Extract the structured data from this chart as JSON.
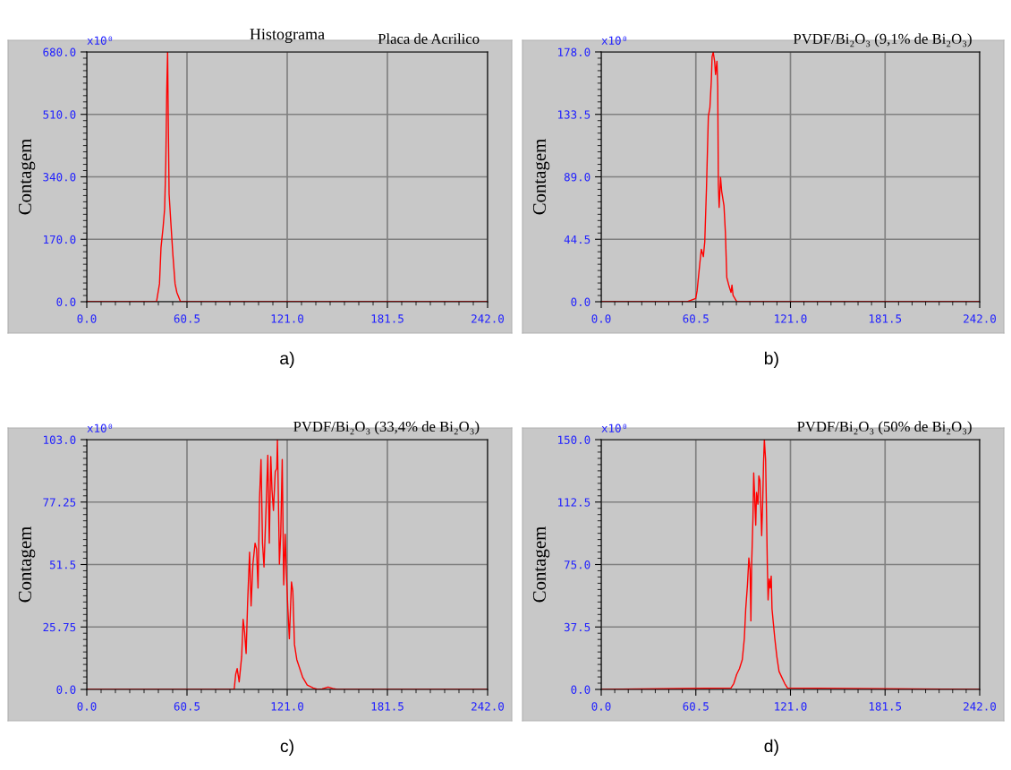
{
  "chart_data": [
    {
      "type": "line",
      "title": "Histograma",
      "subtitle": "Placa de Acrilico",
      "ylabel": "Contagem",
      "annotations": [
        "x10⁰",
        "a)"
      ],
      "grid": true,
      "marker": "none",
      "line_style": "solid",
      "xlim": [
        0,
        242
      ],
      "xticks": [
        {
          "value": 0,
          "label": "0.0"
        },
        {
          "value": 60.5,
          "label": "60.5"
        },
        {
          "value": 121,
          "label": "121.0"
        },
        {
          "value": 181.5,
          "label": "181.5"
        },
        {
          "value": 242,
          "label": "242.0"
        }
      ],
      "ylim": [
        0,
        680
      ],
      "yticks": [
        {
          "value": 0,
          "label": "0.0"
        },
        {
          "value": 170,
          "label": "170.0"
        },
        {
          "value": 340,
          "label": "340.0"
        },
        {
          "value": 510,
          "label": "510.0"
        },
        {
          "value": 680,
          "label": "680.0"
        }
      ],
      "series": [
        {
          "color": "#ff0000",
          "x": [
            0,
            42.1,
            43.9,
            44.8,
            46.1,
            47.0,
            47.7,
            48.3,
            48.8,
            49.2,
            49.7,
            50.8,
            52.0,
            53.3,
            54.4,
            56.6,
            242
          ],
          "values": [
            0,
            0,
            49,
            147,
            204,
            253,
            378,
            578,
            680,
            496,
            293,
            212,
            127,
            49,
            25,
            0,
            0
          ]
        }
      ]
    },
    {
      "type": "line",
      "title": "PVDF/Bi₂O₃ (9,1% de Bi₂O₃)",
      "ylabel": "Contagem",
      "annotations": [
        "x10⁰",
        "b)"
      ],
      "grid": true,
      "marker": "none",
      "line_style": "solid",
      "xlim": [
        0,
        242
      ],
      "xticks": [
        {
          "value": 0,
          "label": "0.0"
        },
        {
          "value": 60.5,
          "label": "60.5"
        },
        {
          "value": 121,
          "label": "121.0"
        },
        {
          "value": 181.5,
          "label": "181.5"
        },
        {
          "value": 242,
          "label": "242.0"
        }
      ],
      "ylim": [
        0,
        178
      ],
      "yticks": [
        {
          "value": 0,
          "label": "0.0"
        },
        {
          "value": 44.5,
          "label": "44.5"
        },
        {
          "value": 89,
          "label": "89.0"
        },
        {
          "value": 133.5,
          "label": "133.5"
        },
        {
          "value": 178,
          "label": "178.0"
        }
      ],
      "series": [
        {
          "color": "#ff0000",
          "x": [
            0,
            55.0,
            60.4,
            61.3,
            63.1,
            64.0,
            65.3,
            66.2,
            67.3,
            68.5,
            69.5,
            70.4,
            70.9,
            71.6,
            72.5,
            73.1,
            74.0,
            74.5,
            74.9,
            75.4,
            76.3,
            77.0,
            78.5,
            79.4,
            80.3,
            81.8,
            83.0,
            83.6,
            84.3,
            86.7,
            242
          ],
          "values": [
            0,
            0,
            2.3,
            7.7,
            27.9,
            37.4,
            32.1,
            42.7,
            81.0,
            132.1,
            138.4,
            157.6,
            174.6,
            177.8,
            171.4,
            161.9,
            171.4,
            153.3,
            83.1,
            67.2,
            88.5,
            78.9,
            68.3,
            49.1,
            17.2,
            10.8,
            6.6,
            11.9,
            4.5,
            0,
            0
          ]
        }
      ]
    },
    {
      "type": "line",
      "title": "PVDF/Bi₂O₃ (33,4% de Bi₂O₃)",
      "ylabel": "Contagem",
      "annotations": [
        "x10⁰",
        "c)"
      ],
      "grid": true,
      "marker": "none",
      "line_style": "solid",
      "xlim": [
        0,
        242
      ],
      "xticks": [
        {
          "value": 0,
          "label": "0.0"
        },
        {
          "value": 60.5,
          "label": "60.5"
        },
        {
          "value": 121,
          "label": "121.0"
        },
        {
          "value": 181.5,
          "label": "181.5"
        },
        {
          "value": 242,
          "label": "242.0"
        }
      ],
      "ylim": [
        0,
        103
      ],
      "yticks": [
        {
          "value": 0,
          "label": "0.0"
        },
        {
          "value": 25.75,
          "label": "25.75"
        },
        {
          "value": 51.5,
          "label": "51.5"
        },
        {
          "value": 77.25,
          "label": "77.25"
        },
        {
          "value": 103,
          "label": "103.0"
        }
      ],
      "series": [
        {
          "color": "#ff0000",
          "x": [
            0,
            89.0,
            89.9,
            90.8,
            92.0,
            93.5,
            94.4,
            95.3,
            96.2,
            97.1,
            98.3,
            99.2,
            100.3,
            101.6,
            102.5,
            103.4,
            104.3,
            105.2,
            106.1,
            107.0,
            108.2,
            109.3,
            110.2,
            111.1,
            111.8,
            112.7,
            113.8,
            114.7,
            115.1,
            115.6,
            116.3,
            117.1,
            118.0,
            118.9,
            119.8,
            120.5,
            121.4,
            122.3,
            123.6,
            124.4,
            125.4,
            126.8,
            128.6,
            130.4,
            133.1,
            136.7,
            139.4,
            142.1,
            145.7,
            148.4,
            151.1,
            242
          ],
          "values": [
            0,
            0,
            6.2,
            8.6,
            3.1,
            13.5,
            28.9,
            23.4,
            14.8,
            35.7,
            56.6,
            34.4,
            51.7,
            60.3,
            57.9,
            41.8,
            78.7,
            94.8,
            60.3,
            50.5,
            73.8,
            96.6,
            60.3,
            96.0,
            82.4,
            73.8,
            89.8,
            91.1,
            102.8,
            82.4,
            51.7,
            64.0,
            94.8,
            43.1,
            64.0,
            48.0,
            33.2,
            20.9,
            44.3,
            40.6,
            18.5,
            12.3,
            8.6,
            4.9,
            1.8,
            0.6,
            0,
            0.2,
            1.0,
            0.4,
            0,
            0
          ]
        }
      ]
    },
    {
      "type": "line",
      "title": "PVDF/Bi₂O₃ (50% de Bi₂O₃)",
      "ylabel": "Contagem",
      "annotations": [
        "x10⁰",
        "d)"
      ],
      "grid": true,
      "marker": "none",
      "line_style": "solid",
      "xlim": [
        0,
        242
      ],
      "xticks": [
        {
          "value": 0,
          "label": "0.0"
        },
        {
          "value": 60.5,
          "label": "60.5"
        },
        {
          "value": 121,
          "label": "121.0"
        },
        {
          "value": 181.5,
          "label": "181.5"
        },
        {
          "value": 242,
          "label": "242.0"
        }
      ],
      "ylim": [
        0,
        150
      ],
      "yticks": [
        {
          "value": 0,
          "label": "0.0"
        },
        {
          "value": 37.5,
          "label": "37.5"
        },
        {
          "value": 75,
          "label": "75.0"
        },
        {
          "value": 112.5,
          "label": "112.5"
        },
        {
          "value": 150,
          "label": "150.0"
        }
      ],
      "series": [
        {
          "color": "#ff0000",
          "x": [
            0,
            83.0,
            84.8,
            86.6,
            88.4,
            90.2,
            91.5,
            92.4,
            93.5,
            94.4,
            95.2,
            95.7,
            96.2,
            97.0,
            97.5,
            98.0,
            98.8,
            99.3,
            100.2,
            100.8,
            101.5,
            102.0,
            102.6,
            103.3,
            103.8,
            104.3,
            105.1,
            105.6,
            106.2,
            106.7,
            107.4,
            108.0,
            108.7,
            109.2,
            110.1,
            111.0,
            112.3,
            113.7,
            115.5,
            117.3,
            119.1,
            242
          ],
          "values": [
            0,
            0.9,
            3.6,
            9.0,
            12.5,
            17.9,
            30.5,
            48.4,
            62.7,
            78.9,
            71.7,
            41.2,
            75.3,
            102.2,
            130.0,
            118.3,
            98.6,
            118.3,
            111.2,
            128.2,
            125.5,
            111.2,
            92.3,
            114.7,
            136.2,
            150,
            138.0,
            111.2,
            75.3,
            53.8,
            66.3,
            60.9,
            68.1,
            48.4,
            39.4,
            30.5,
            19.7,
            10.8,
            7.2,
            3.6,
            0.9,
            0
          ]
        }
      ]
    }
  ]
}
